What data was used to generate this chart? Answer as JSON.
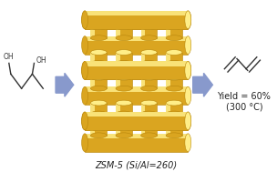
{
  "bg_color": "#ffffff",
  "arrow_color": "#8899cc",
  "gold": "#FFD700",
  "gold_dark": "#B8860B",
  "gold_mid": "#DAA520",
  "gold_light": "#FFEE88",
  "zsm5_label": "ZSM-5 (Si/Al=260)",
  "yield_line1": "Yield = 60%",
  "yield_line2": "(300 °C)",
  "label_fontsize": 7,
  "mol_color": "#333333",
  "fig_w": 3.04,
  "fig_h": 1.89,
  "dpi": 100
}
